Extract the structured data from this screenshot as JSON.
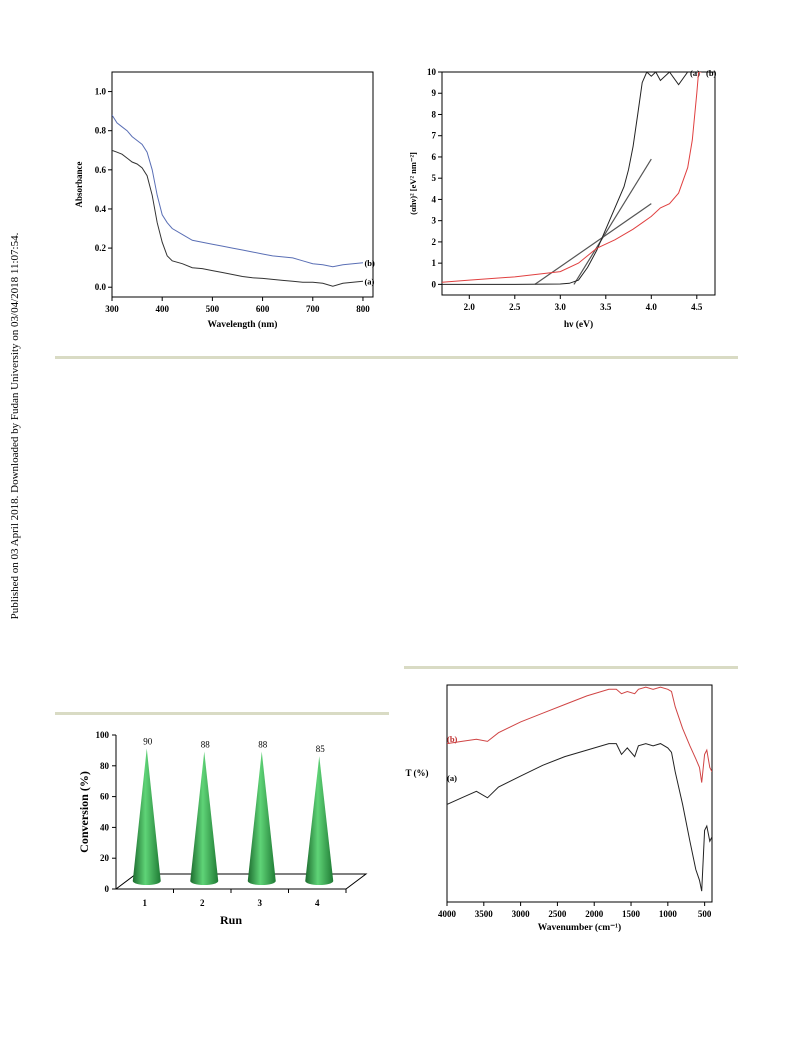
{
  "sidebar_note": "Published on 03 April 2018. Downloaded by Fudan University on 03/04/2018 11:07:54.",
  "chart_data": [
    {
      "id": "uvvis",
      "type": "line",
      "title": "",
      "xlabel": "Wavelength (nm)",
      "ylabel": "Absorbance",
      "xlim": [
        300,
        820
      ],
      "ylim": [
        -0.05,
        1.1
      ],
      "xticks": [
        300,
        400,
        500,
        600,
        700,
        800
      ],
      "yticks": [
        0.0,
        0.2,
        0.4,
        0.6,
        0.8,
        1.0
      ],
      "ytick_labels": [
        "0.0",
        "0.2",
        "0.4",
        "0.6",
        "0.8",
        "1.0"
      ],
      "series": [
        {
          "name": "(a)",
          "color": "#333333",
          "x": [
            300,
            310,
            320,
            330,
            340,
            350,
            360,
            370,
            380,
            390,
            400,
            410,
            420,
            440,
            460,
            480,
            500,
            520,
            540,
            560,
            580,
            600,
            620,
            640,
            660,
            680,
            700,
            720,
            740,
            760,
            780,
            800
          ],
          "y": [
            0.7,
            0.69,
            0.68,
            0.66,
            0.64,
            0.63,
            0.61,
            0.57,
            0.47,
            0.33,
            0.23,
            0.16,
            0.135,
            0.12,
            0.1,
            0.095,
            0.085,
            0.075,
            0.065,
            0.055,
            0.048,
            0.045,
            0.04,
            0.035,
            0.03,
            0.025,
            0.025,
            0.02,
            0.005,
            0.02,
            0.025,
            0.03
          ]
        },
        {
          "name": "(b)",
          "color": "#5a6fb5",
          "x": [
            300,
            310,
            320,
            330,
            340,
            350,
            360,
            370,
            380,
            390,
            400,
            410,
            420,
            440,
            460,
            480,
            500,
            520,
            540,
            560,
            580,
            600,
            620,
            640,
            660,
            680,
            700,
            720,
            740,
            760,
            780,
            800
          ],
          "y": [
            0.88,
            0.84,
            0.82,
            0.8,
            0.77,
            0.75,
            0.73,
            0.69,
            0.6,
            0.47,
            0.37,
            0.33,
            0.3,
            0.27,
            0.24,
            0.23,
            0.22,
            0.21,
            0.2,
            0.19,
            0.18,
            0.17,
            0.16,
            0.155,
            0.15,
            0.135,
            0.12,
            0.115,
            0.105,
            0.115,
            0.12,
            0.125
          ]
        }
      ]
    },
    {
      "id": "tauc",
      "type": "line",
      "title": "",
      "xlabel": "hν (eV)",
      "ylabel": "(αhν)² [eV² nm⁻²]",
      "xlim": [
        1.7,
        4.7
      ],
      "ylim": [
        -0.5,
        10
      ],
      "xticks": [
        2.0,
        2.5,
        3.0,
        3.5,
        4.0,
        4.5
      ],
      "xtick_labels": [
        "2.0",
        "2.5",
        "3.0",
        "3.5",
        "4.0",
        "4.5"
      ],
      "yticks": [
        0,
        1,
        2,
        3,
        4,
        5,
        6,
        7,
        8,
        9,
        10
      ],
      "series": [
        {
          "name": "(a)",
          "color": "#222222",
          "x": [
            1.7,
            2.5,
            3.0,
            3.1,
            3.2,
            3.3,
            3.4,
            3.5,
            3.6,
            3.7,
            3.75,
            3.8,
            3.85,
            3.9,
            3.95,
            4.0,
            4.05,
            4.1,
            4.2,
            4.3,
            4.4
          ],
          "y": [
            0,
            0,
            0.02,
            0.05,
            0.2,
            0.8,
            1.6,
            2.6,
            3.6,
            4.6,
            5.4,
            6.5,
            8.0,
            9.5,
            10,
            9.8,
            10,
            9.6,
            10,
            9.4,
            10
          ]
        },
        {
          "name": "(b)",
          "color": "#e04040",
          "x": [
            1.7,
            2.0,
            2.5,
            3.0,
            3.2,
            3.4,
            3.6,
            3.8,
            3.9,
            4.0,
            4.1,
            4.2,
            4.3,
            4.4,
            4.45,
            4.5,
            4.52,
            4.55
          ],
          "y": [
            0.1,
            0.2,
            0.35,
            0.6,
            1.0,
            1.7,
            2.1,
            2.6,
            2.9,
            3.2,
            3.6,
            3.8,
            4.3,
            5.5,
            6.8,
            9.0,
            10,
            10
          ]
        }
      ],
      "tangents": [
        {
          "x": [
            3.15,
            4.0
          ],
          "y": [
            0,
            5.9
          ]
        },
        {
          "x": [
            2.72,
            4.0
          ],
          "y": [
            0,
            3.8
          ]
        }
      ]
    },
    {
      "id": "recycle",
      "type": "bar",
      "title": "",
      "xlabel": "Run",
      "ylabel": "Conversion (%)",
      "ylim": [
        0,
        100
      ],
      "yticks": [
        0,
        20,
        40,
        60,
        80,
        100
      ],
      "categories": [
        "1",
        "2",
        "3",
        "4"
      ],
      "values": [
        90,
        88,
        88,
        85
      ],
      "value_labels": [
        "90",
        "88",
        "88",
        "85"
      ],
      "bar_color": "#2e9e48"
    },
    {
      "id": "ftir",
      "type": "line",
      "title": "",
      "xlabel": "Wavenumber (cm⁻¹)",
      "ylabel": "T (%)",
      "xlim": [
        4000,
        400
      ],
      "xticks": [
        4000,
        3500,
        3000,
        2500,
        2000,
        1500,
        1000,
        500
      ],
      "ylim": [
        0,
        100
      ],
      "series": [
        {
          "name": "(a)",
          "color": "#222222",
          "x": [
            4000,
            3800,
            3600,
            3450,
            3300,
            3000,
            2700,
            2400,
            2100,
            1800,
            1700,
            1630,
            1550,
            1450,
            1400,
            1300,
            1200,
            1100,
            1000,
            950,
            900,
            800,
            700,
            620,
            570,
            540,
            500,
            470,
            430,
            400
          ],
          "y": [
            45,
            48,
            51,
            48,
            53,
            58,
            63,
            67,
            70,
            73,
            73,
            68,
            71,
            67,
            72,
            73,
            72,
            73,
            71,
            69,
            60,
            45,
            28,
            15,
            10,
            5,
            33,
            35,
            28,
            30
          ]
        },
        {
          "name": "(b)",
          "color": "#d04545",
          "x": [
            4000,
            3800,
            3600,
            3450,
            3300,
            3000,
            2700,
            2400,
            2100,
            1800,
            1700,
            1630,
            1550,
            1450,
            1400,
            1300,
            1200,
            1100,
            1000,
            950,
            900,
            800,
            700,
            620,
            570,
            540,
            500,
            470,
            430,
            400
          ],
          "y": [
            73,
            74,
            75,
            74,
            78,
            83,
            87,
            91,
            95,
            98,
            98,
            96,
            97,
            96,
            98,
            99,
            98,
            99,
            98,
            97,
            90,
            80,
            72,
            66,
            62,
            55,
            68,
            70,
            62,
            60
          ]
        }
      ]
    }
  ]
}
